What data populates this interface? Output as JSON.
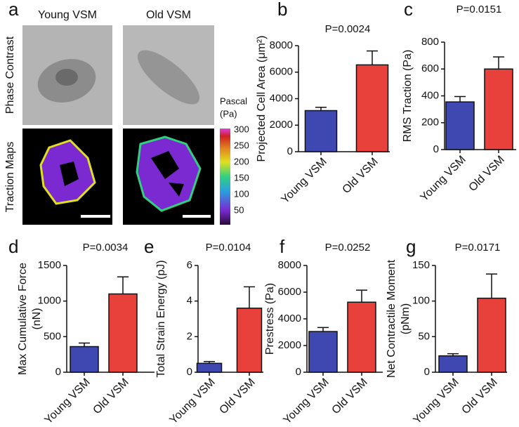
{
  "figure": {
    "label": "a",
    "columns": [
      "Young VSM",
      "Old VSM"
    ],
    "rows": [
      "Phase Contrast",
      "Traction Maps"
    ],
    "colorbar_title": [
      "Pascal",
      "(Pa)"
    ],
    "colorbar_ticks": [
      300,
      250,
      200,
      150,
      100,
      50
    ]
  },
  "chart_data": [
    {
      "type": "bar",
      "label": "b",
      "title": "P=0.0024",
      "y_label": [
        "Projected Cell Area (μm²)"
      ],
      "categories": [
        "Young VSM",
        "Old VSM"
      ],
      "values": [
        3100,
        6550
      ],
      "errors": [
        250,
        1050
      ],
      "colors": [
        "#3f48b0",
        "#e8413c"
      ],
      "ylim": [
        0,
        8000
      ],
      "yticks": [
        0,
        2000,
        4000,
        6000,
        8000
      ]
    },
    {
      "type": "bar",
      "label": "c",
      "title": "P=0.0151",
      "y_label": [
        "RMS Traction (Pa)"
      ],
      "categories": [
        "Young VSM",
        "Old VSM"
      ],
      "values": [
        355,
        600
      ],
      "errors": [
        40,
        90
      ],
      "colors": [
        "#3f48b0",
        "#e8413c"
      ],
      "ylim": [
        0,
        800
      ],
      "yticks": [
        0,
        200,
        400,
        600,
        800
      ]
    },
    {
      "type": "bar",
      "label": "d",
      "title": "P=0.0034",
      "y_label": [
        "Max Cumulative Force",
        "(nN)"
      ],
      "categories": [
        "Young VSM",
        "Old VSM"
      ],
      "values": [
        360,
        1100
      ],
      "errors": [
        50,
        240
      ],
      "colors": [
        "#3f48b0",
        "#e8413c"
      ],
      "ylim": [
        0,
        1500
      ],
      "yticks": [
        0,
        500,
        1000,
        1500
      ]
    },
    {
      "type": "bar",
      "label": "e",
      "title": "P=0.0104",
      "y_label": [
        "Total Strain Energy (pJ)"
      ],
      "categories": [
        "Young VSM",
        "Old VSM"
      ],
      "values": [
        0.5,
        3.6
      ],
      "errors": [
        0.1,
        1.2
      ],
      "colors": [
        "#3f48b0",
        "#e8413c"
      ],
      "ylim": [
        0,
        6
      ],
      "yticks": [
        0,
        2,
        4,
        6
      ]
    },
    {
      "type": "bar",
      "label": "f",
      "title": "P=0.0252",
      "y_label": [
        "Prestress (Pa)"
      ],
      "categories": [
        "Young VSM",
        "Old VSM"
      ],
      "values": [
        3050,
        5250
      ],
      "errors": [
        300,
        900
      ],
      "colors": [
        "#3f48b0",
        "#e8413c"
      ],
      "ylim": [
        0,
        8000
      ],
      "yticks": [
        0,
        2000,
        4000,
        6000,
        8000
      ]
    },
    {
      "type": "bar",
      "label": "g",
      "title": "P=0.0171",
      "y_label": [
        "Net Contractile Moment",
        "(pNm)"
      ],
      "categories": [
        "Young VSM",
        "Old VSM"
      ],
      "values": [
        23,
        104
      ],
      "errors": [
        3,
        34
      ],
      "colors": [
        "#3f48b0",
        "#e8413c"
      ],
      "ylim": [
        0,
        150
      ],
      "yticks": [
        0,
        50,
        100,
        150
      ]
    }
  ]
}
